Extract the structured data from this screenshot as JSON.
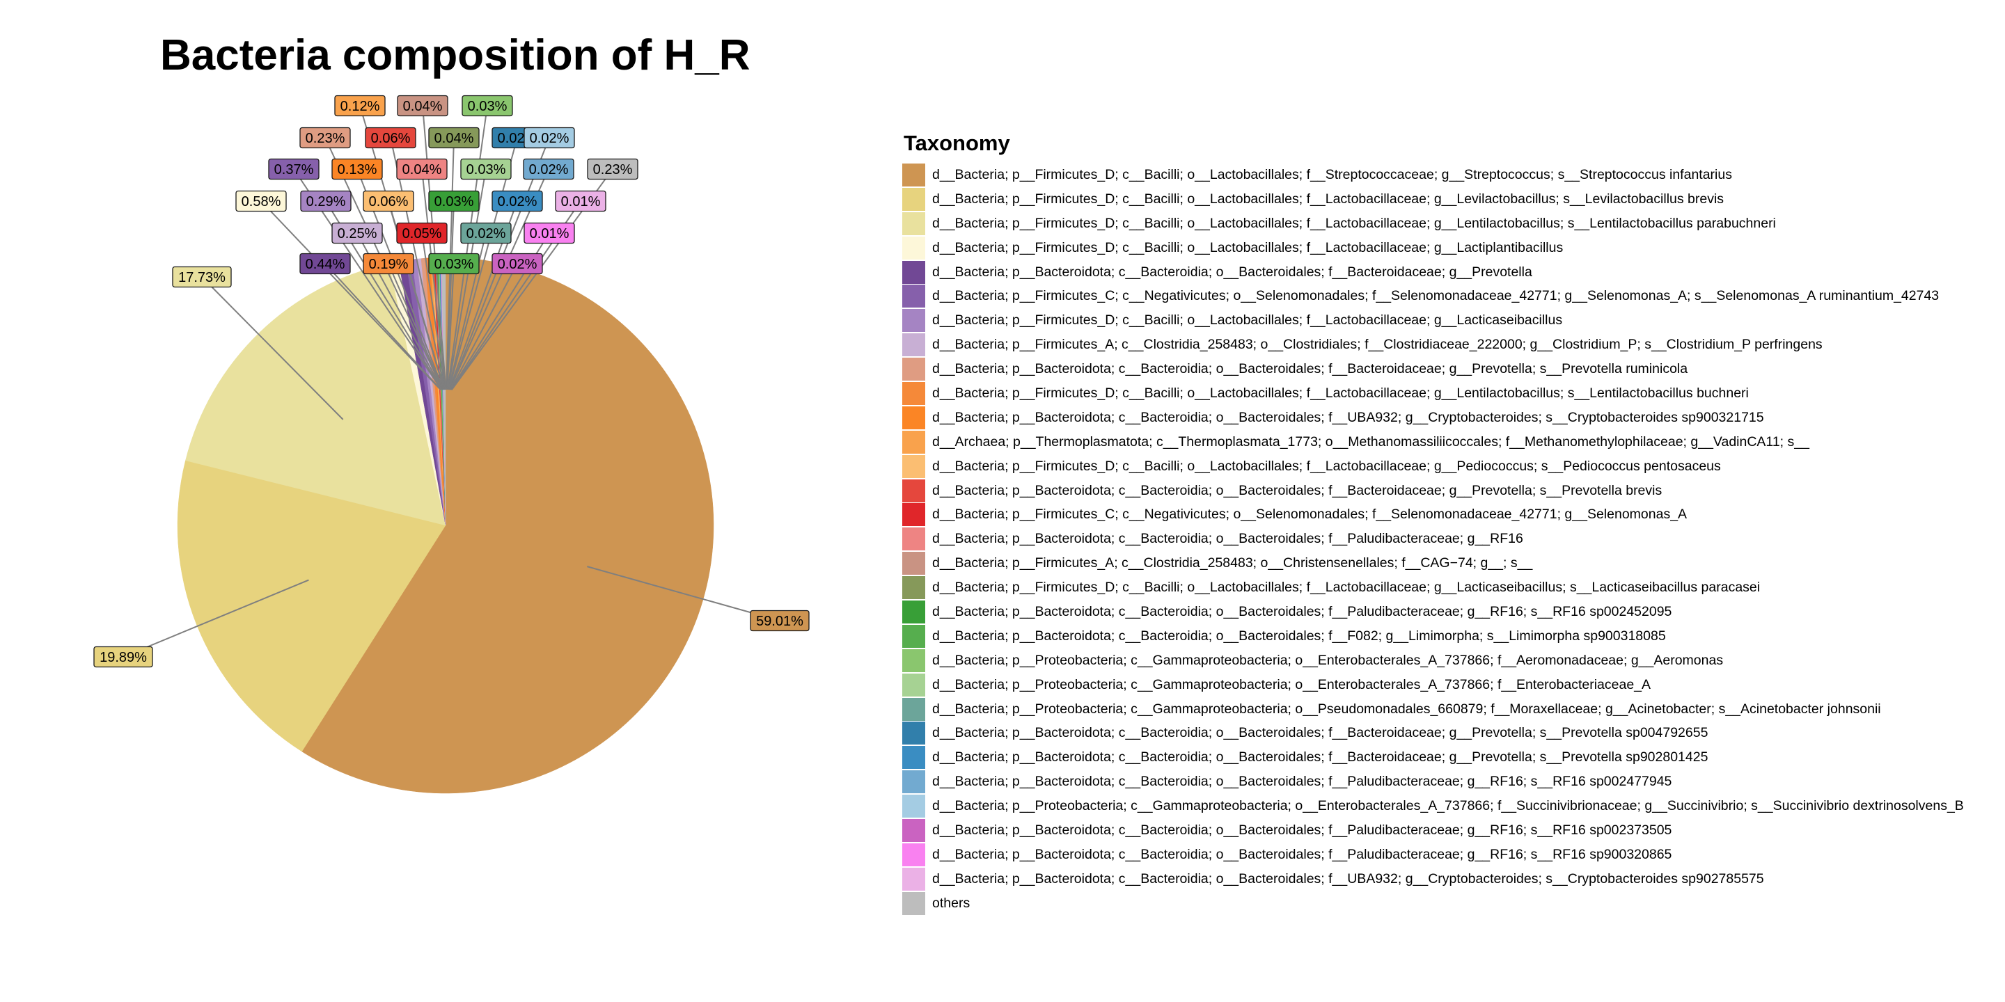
{
  "chart_data": {
    "type": "pie",
    "title": "Bacteria composition of H_R",
    "legend_title": "Taxonomy",
    "legend_position": "right",
    "slices": [
      {
        "label": "d__Bacteria; p__Firmicutes_D; c__Bacilli; o__Lactobacillales; f__Streptococcaceae; g__Streptococcus; s__Streptococcus infantarius",
        "value": 59.01,
        "display": "59.01%",
        "color": "#CE9552"
      },
      {
        "label": "d__Bacteria; p__Firmicutes_D; c__Bacilli; o__Lactobacillales; f__Lactobacillaceae; g__Levilactobacillus; s__Levilactobacillus brevis",
        "value": 19.89,
        "display": "19.89%",
        "color": "#E7D37E"
      },
      {
        "label": "d__Bacteria; p__Firmicutes_D; c__Bacilli; o__Lactobacillales; f__Lactobacillaceae; g__Lentilactobacillus; s__Lentilactobacillus parabuchneri",
        "value": 17.73,
        "display": "17.73%",
        "color": "#E9E19E"
      },
      {
        "label": "d__Bacteria; p__Firmicutes_D; c__Bacilli; o__Lactobacillales; f__Lactobacillaceae; g__Lactiplantibacillus",
        "value": 0.58,
        "display": "0.58%",
        "color": "#FDF7D9"
      },
      {
        "label": "d__Bacteria; p__Bacteroidota; c__Bacteroidia; o__Bacteroidales; f__Bacteroidaceae; g__Prevotella",
        "value": 0.44,
        "display": "0.44%",
        "color": "#714895"
      },
      {
        "label": "d__Bacteria; p__Firmicutes_C; c__Negativicutes; o__Selenomonadales; f__Selenomonadaceae_42771; g__Selenomonas_A; s__Selenomonas_A ruminantium_42743",
        "value": 0.37,
        "display": "0.37%",
        "color": "#8660AB"
      },
      {
        "label": "d__Bacteria; p__Firmicutes_D; c__Bacilli; o__Lactobacillales; f__Lactobacillaceae; g__Lacticaseibacillus",
        "value": 0.29,
        "display": "0.29%",
        "color": "#A584C3"
      },
      {
        "label": "d__Bacteria; p__Firmicutes_A; c__Clostridia_258483; o__Clostridiales; f__Clostridiaceae_222000; g__Clostridium_P; s__Clostridium_P perfringens",
        "value": 0.25,
        "display": "0.25%",
        "color": "#C8AFD4"
      },
      {
        "label": "d__Bacteria; p__Bacteroidota; c__Bacteroidia; o__Bacteroidales; f__Bacteroidaceae; g__Prevotella; s__Prevotella ruminicola",
        "value": 0.23,
        "display": "0.23%",
        "color": "#DF9C82"
      },
      {
        "label": "d__Bacteria; p__Firmicutes_D; c__Bacilli; o__Lactobacillales; f__Lactobacillaceae; g__Lentilactobacillus; s__Lentilactobacillus buchneri",
        "value": 0.19,
        "display": "0.19%",
        "color": "#F58939"
      },
      {
        "label": "d__Bacteria; p__Bacteroidota; c__Bacteroidia; o__Bacteroidales; f__UBA932; g__Cryptobacteroides; s__Cryptobacteroides sp900321715",
        "value": 0.13,
        "display": "0.13%",
        "color": "#FB8525"
      },
      {
        "label": "d__Archaea; p__Thermoplasmatota; c__Thermoplasmata_1773; o__Methanomassiliicoccales; f__Methanomethylophilaceae; g__VadinCA11; s__",
        "value": 0.12,
        "display": "0.12%",
        "color": "#F9A24C"
      },
      {
        "label": "d__Bacteria; p__Firmicutes_D; c__Bacilli; o__Lactobacillales; f__Lactobacillaceae; g__Pediococcus; s__Pediococcus pentosaceus",
        "value": 0.06,
        "display": "0.06%",
        "color": "#FBBE72"
      },
      {
        "label": "d__Bacteria; p__Bacteroidota; c__Bacteroidia; o__Bacteroidales; f__Bacteroidaceae; g__Prevotella; s__Prevotella brevis",
        "value": 0.06,
        "display": "0.06%",
        "color": "#E5473D"
      },
      {
        "label": "d__Bacteria; p__Firmicutes_C; c__Negativicutes; o__Selenomonadales; f__Selenomonadaceae_42771; g__Selenomonas_A",
        "value": 0.05,
        "display": "0.05%",
        "color": "#E0262A"
      },
      {
        "label": "d__Bacteria; p__Bacteroidota; c__Bacteroidia; o__Bacteroidales; f__Paludibacteraceae; g__RF16",
        "value": 0.04,
        "display": "0.04%",
        "color": "#EE8483"
      },
      {
        "label": "d__Bacteria; p__Firmicutes_A; c__Clostridia_258483; o__Christensenellales; f__CAG−74; g__; s__",
        "value": 0.04,
        "display": "0.04%",
        "color": "#C99383"
      },
      {
        "label": "d__Bacteria; p__Firmicutes_D; c__Bacilli; o__Lactobacillales; f__Lactobacillaceae; g__Lacticaseibacillus; s__Lacticaseibacillus paracasei",
        "value": 0.04,
        "display": "0.04%",
        "color": "#86995A"
      },
      {
        "label": "d__Bacteria; p__Bacteroidota; c__Bacteroidia; o__Bacteroidales; f__Paludibacteraceae; g__RF16; s__RF16 sp002452095",
        "value": 0.03,
        "display": "0.03%",
        "color": "#389F37"
      },
      {
        "label": "d__Bacteria; p__Bacteroidota; c__Bacteroidia; o__Bacteroidales; f__F082; g__Limimorpha; s__Limimorpha sp900318085",
        "value": 0.03,
        "display": "0.03%",
        "color": "#56AE4E"
      },
      {
        "label": "d__Bacteria; p__Proteobacteria; c__Gammaproteobacteria; o__Enterobacterales_A_737866; f__Aeromonadaceae; g__Aeromonas",
        "value": 0.03,
        "display": "0.03%",
        "color": "#8AC66E"
      },
      {
        "label": "d__Bacteria; p__Proteobacteria; c__Gammaproteobacteria; o__Enterobacterales_A_737866; f__Enterobacteriaceae_A",
        "value": 0.03,
        "display": "0.03%",
        "color": "#A6D293"
      },
      {
        "label": "d__Bacteria; p__Proteobacteria; c__Gammaproteobacteria; o__Pseudomonadales_660879; f__Moraxellaceae; g__Acinetobacter; s__Acinetobacter johnsonii",
        "value": 0.02,
        "display": "0.02%",
        "color": "#6CA59A"
      },
      {
        "label": "d__Bacteria; p__Bacteroidota; c__Bacteroidia; o__Bacteroidales; f__Bacteroidaceae; g__Prevotella; s__Prevotella sp004792655",
        "value": 0.02,
        "display": "0.02%",
        "color": "#317FAB"
      },
      {
        "label": "d__Bacteria; p__Bacteroidota; c__Bacteroidia; o__Bacteroidales; f__Bacteroidaceae; g__Prevotella; s__Prevotella sp902801425",
        "value": 0.02,
        "display": "0.02%",
        "color": "#3A8DC2"
      },
      {
        "label": "d__Bacteria; p__Bacteroidota; c__Bacteroidia; o__Bacteroidales; f__Paludibacteraceae; g__RF16; s__RF16 sp002477945",
        "value": 0.02,
        "display": "0.02%",
        "color": "#72AAD0"
      },
      {
        "label": "d__Bacteria; p__Proteobacteria; c__Gammaproteobacteria; o__Enterobacterales_A_737866; f__Succinivibrionaceae; g__Succinivibrio; s__Succinivibrio dextrinosolvens_B",
        "value": 0.02,
        "display": "0.02%",
        "color": "#A4CCE3"
      },
      {
        "label": "d__Bacteria; p__Bacteroidota; c__Bacteroidia; o__Bacteroidales; f__Paludibacteraceae; g__RF16; s__RF16 sp002373505",
        "value": 0.02,
        "display": "0.02%",
        "color": "#CA63C1"
      },
      {
        "label": "d__Bacteria; p__Bacteroidota; c__Bacteroidia; o__Bacteroidales; f__Paludibacteraceae; g__RF16; s__RF16 sp900320865",
        "value": 0.01,
        "display": "0.01%",
        "color": "#F981F0"
      },
      {
        "label": "d__Bacteria; p__Bacteroidota; c__Bacteroidia; o__Bacteroidales; f__UBA932; g__Cryptobacteroides; s__Cryptobacteroides sp902785575",
        "value": 0.01,
        "display": "0.01%",
        "color": "#EBB1E6"
      },
      {
        "label": "others",
        "value": 0.23,
        "display": "0.23%",
        "color": "#BDBDBD"
      }
    ]
  }
}
